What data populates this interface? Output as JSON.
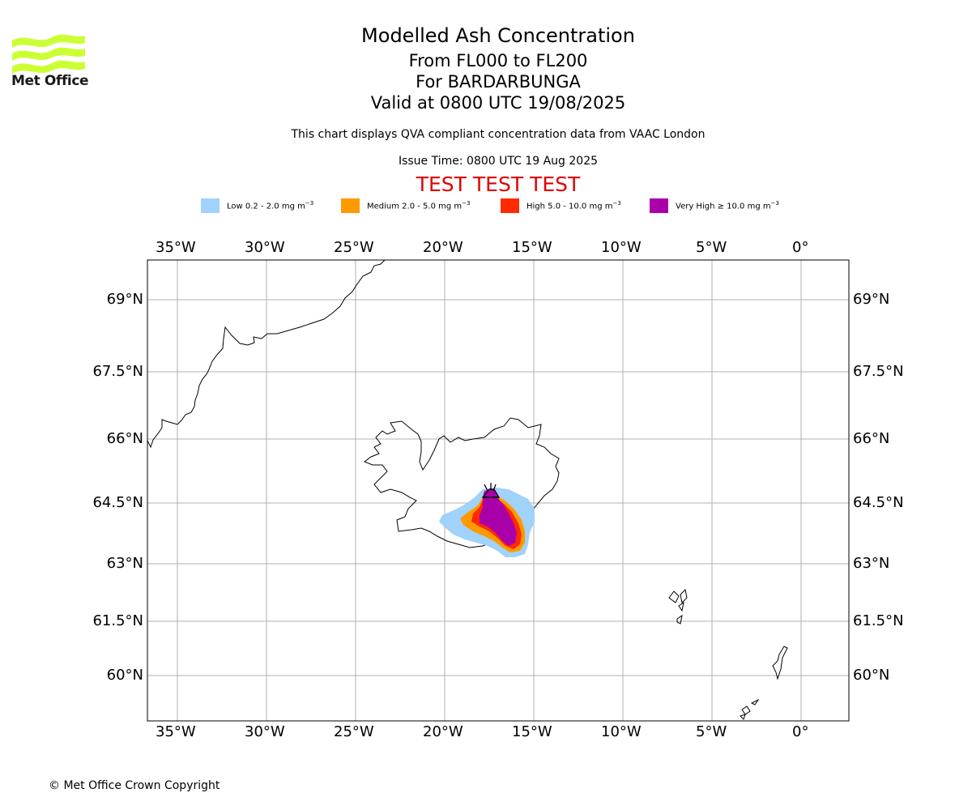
{
  "logo": {
    "name": "Met Office",
    "icon": "met-office-wave-logo",
    "color": "#ccff33"
  },
  "title": {
    "line1": "Modelled Ash Concentration",
    "line2": "From FL000 to FL200",
    "line3": "For BARDARBUNGA",
    "line4": "Valid at 0800 UTC 19/08/2025"
  },
  "description": "This chart displays QVA compliant concentration data from VAAC London",
  "issue_time": "Issue Time: 0800 UTC 19 Aug 2025",
  "test_banner": "TEST TEST TEST",
  "legend": [
    {
      "label": "Low 0.2 - 2.0 mg m",
      "exp": "−3",
      "color": "#a0d2fa"
    },
    {
      "label": "Medium 2.0 - 5.0 mg m",
      "exp": "−3",
      "color": "#ff9900"
    },
    {
      "label": "High 5.0 - 10.0 mg m",
      "exp": "−3",
      "color": "#ff2a00"
    },
    {
      "label": "Very High  ≥  10.0 mg m",
      "exp": "−3",
      "color": "#aa00aa"
    }
  ],
  "axes": {
    "lon_ticks": [
      "35°W",
      "30°W",
      "25°W",
      "20°W",
      "15°W",
      "10°W",
      "5°W",
      "0°"
    ],
    "lat_ticks": [
      "69°N",
      "67.5°N",
      "66°N",
      "64.5°N",
      "63°N",
      "61.5°N",
      "60°N"
    ],
    "lon_range": [
      -36.7,
      2.7
    ],
    "grid": true
  },
  "volcano": {
    "name": "BARDARBUNGA",
    "icon": "volcano-icon"
  },
  "copyright": "© Met Office Crown Copyright"
}
